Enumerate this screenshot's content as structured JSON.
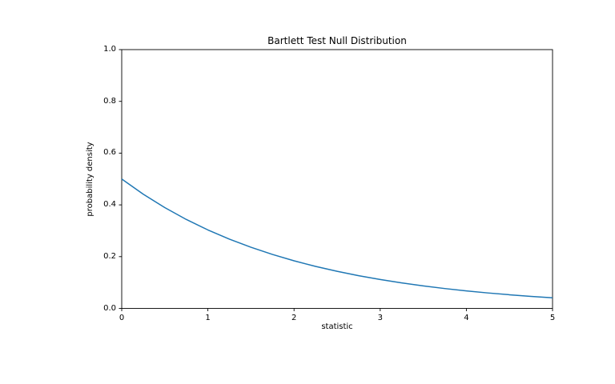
{
  "figure": {
    "background_color": "#ffffff",
    "spine_color": "#000000"
  },
  "chart_data": {
    "type": "line",
    "title": "Bartlett Test Null Distribution",
    "xlabel": "statistic",
    "ylabel": "probability density",
    "xlim": [
      0,
      5
    ],
    "ylim": [
      0.0,
      1.0
    ],
    "xticks": [
      0,
      1,
      2,
      3,
      4,
      5
    ],
    "xtick_labels": [
      "0",
      "1",
      "2",
      "3",
      "4",
      "5"
    ],
    "yticks": [
      0.0,
      0.2,
      0.4,
      0.6,
      0.8,
      1.0
    ],
    "ytick_labels": [
      "0.0",
      "0.2",
      "0.4",
      "0.6",
      "0.8",
      "1.0"
    ],
    "grid": false,
    "legend": null,
    "series": [
      {
        "color": "#1f77b4",
        "line_width": 1.5,
        "x": [
          0.0,
          0.25,
          0.5,
          0.75,
          1.0,
          1.25,
          1.5,
          1.75,
          2.0,
          2.25,
          2.5,
          2.75,
          3.0,
          3.25,
          3.5,
          3.75,
          4.0,
          4.25,
          4.5,
          4.75,
          5.0
        ],
        "y": [
          0.5,
          0.4413,
          0.3894,
          0.3436,
          0.3033,
          0.2676,
          0.2362,
          0.2084,
          0.1839,
          0.1623,
          0.1433,
          0.1264,
          0.1116,
          0.0985,
          0.0869,
          0.0767,
          0.0677,
          0.0597,
          0.0527,
          0.0465,
          0.041
        ]
      }
    ]
  }
}
